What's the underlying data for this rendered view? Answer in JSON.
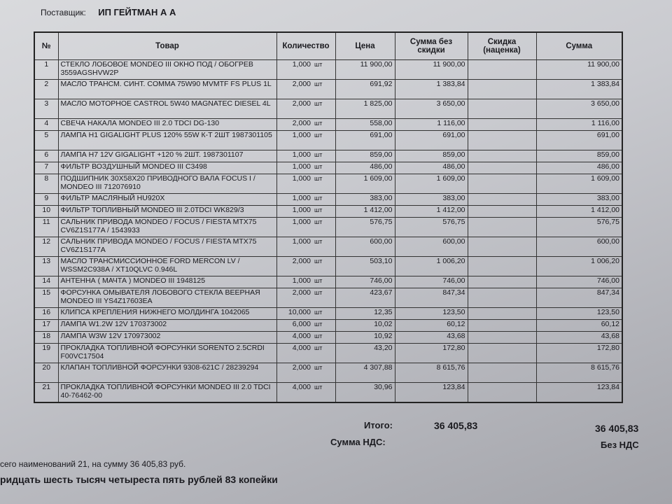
{
  "supplier": {
    "label": "Поставщик:",
    "name": "ИП ГЕЙТМАН А А"
  },
  "headers": {
    "num": "№",
    "item": "Товар",
    "qty": "Количество",
    "price": "Цена",
    "sum_no_disc": "Сумма без скидки",
    "discount": "Скидка (наценка)",
    "sum": "Сумма"
  },
  "rows": [
    {
      "n": "1",
      "item": "СТЕКЛО ЛОБОВОЕ MONDEO III ОКНО ПОД / ОБОГРЕВ 3559AGSHVW2P",
      "qty": "1,000",
      "unit": "шт",
      "price": "11 900,00",
      "sum_nd": "11 900,00",
      "disc": "",
      "sum": "11 900,00",
      "lines": 2
    },
    {
      "n": "2",
      "item": "МАСЛО ТРАНСМ. СИНТ. COMMA 75W90 MVMTF FS PLUS 1L",
      "qty": "2,000",
      "unit": "шт",
      "price": "691,92",
      "sum_nd": "1 383,84",
      "disc": "",
      "sum": "1 383,84",
      "lines": 2
    },
    {
      "n": "3",
      "item": "МАСЛО МОТОРНОЕ CASTROL 5W40 MAGNATEC DIESEL 4L",
      "qty": "2,000",
      "unit": "шт",
      "price": "1 825,00",
      "sum_nd": "3 650,00",
      "disc": "",
      "sum": "3 650,00",
      "lines": 2
    },
    {
      "n": "4",
      "item": "СВЕЧА НАКАЛА MONDEO III 2.0 TDCI DG-130",
      "qty": "2,000",
      "unit": "шт",
      "price": "558,00",
      "sum_nd": "1 116,00",
      "disc": "",
      "sum": "1 116,00",
      "lines": 1
    },
    {
      "n": "5",
      "item": "ЛАМПА H1 GIGALIGHT PLUS 120% 55W К-Т 2ШТ 1987301105",
      "qty": "1,000",
      "unit": "шт",
      "price": "691,00",
      "sum_nd": "691,00",
      "disc": "",
      "sum": "691,00",
      "lines": 2
    },
    {
      "n": "6",
      "item": "ЛАМПА H7 12V GIGALIGHT +120 % 2ШТ. 1987301107",
      "qty": "1,000",
      "unit": "шт",
      "price": "859,00",
      "sum_nd": "859,00",
      "disc": "",
      "sum": "859,00",
      "lines": 1
    },
    {
      "n": "7",
      "item": "ФИЛЬТР ВОЗДУШНЫЙ MONDEO III C3498",
      "qty": "1,000",
      "unit": "шт",
      "price": "486,00",
      "sum_nd": "486,00",
      "disc": "",
      "sum": "486,00",
      "lines": 1
    },
    {
      "n": "8",
      "item": "ПОДШИПНИК 30X58X20 ПРИВОДНОГО ВАЛА FOCUS I / MONDEO III 712076910",
      "qty": "1,000",
      "unit": "шт",
      "price": "1 609,00",
      "sum_nd": "1 609,00",
      "disc": "",
      "sum": "1 609,00",
      "lines": 2
    },
    {
      "n": "9",
      "item": "ФИЛЬТР МАСЛЯНЫЙ HU920X",
      "qty": "1,000",
      "unit": "шт",
      "price": "383,00",
      "sum_nd": "383,00",
      "disc": "",
      "sum": "383,00",
      "lines": 1
    },
    {
      "n": "10",
      "item": "ФИЛЬТР ТОПЛИВНЫЙ MONDEO III 2.0TDCI WK829/3",
      "qty": "1,000",
      "unit": "шт",
      "price": "1 412,00",
      "sum_nd": "1 412,00",
      "disc": "",
      "sum": "1 412,00",
      "lines": 1
    },
    {
      "n": "11",
      "item": "САЛЬНИК ПРИВОДА MONDEO / FOCUS / FIESTA MTX75 CV6Z1S177A / 1543933",
      "qty": "1,000",
      "unit": "шт",
      "price": "576,75",
      "sum_nd": "576,75",
      "disc": "",
      "sum": "576,75",
      "lines": 2
    },
    {
      "n": "12",
      "item": "САЛЬНИК ПРИВОДА MONDEO / FOCUS / FIESTA MTX75 CV6Z1S177A",
      "qty": "1,000",
      "unit": "шт",
      "price": "600,00",
      "sum_nd": "600,00",
      "disc": "",
      "sum": "600,00",
      "lines": 2
    },
    {
      "n": "13",
      "item": "МАСЛО ТРАНСМИССИОННОЕ FORD MERCON LV / WSSM2C938A / XT10QLVC 0.946L",
      "qty": "2,000",
      "unit": "шт",
      "price": "503,10",
      "sum_nd": "1 006,20",
      "disc": "",
      "sum": "1 006,20",
      "lines": 2
    },
    {
      "n": "14",
      "item": "АНТЕННА ( МАЧТА ) MONDEO III 1948125",
      "qty": "1,000",
      "unit": "шт",
      "price": "746,00",
      "sum_nd": "746,00",
      "disc": "",
      "sum": "746,00",
      "lines": 1
    },
    {
      "n": "15",
      "item": "ФОРСУНКА ОМЫВАТЕЛЯ ЛОБОВОГО СТЕКЛА ВЕЕРНАЯ MONDEO III YS4Z17603EA",
      "qty": "2,000",
      "unit": "шт",
      "price": "423,67",
      "sum_nd": "847,34",
      "disc": "",
      "sum": "847,34",
      "lines": 2
    },
    {
      "n": "16",
      "item": "КЛИПСА КРЕПЛЕНИЯ НИЖНЕГО МОЛДИНГА 1042065",
      "qty": "10,000",
      "unit": "шт",
      "price": "12,35",
      "sum_nd": "123,50",
      "disc": "",
      "sum": "123,50",
      "lines": 1
    },
    {
      "n": "17",
      "item": "ЛАМПА W1.2W 12V 170373002",
      "qty": "6,000",
      "unit": "шт",
      "price": "10,02",
      "sum_nd": "60,12",
      "disc": "",
      "sum": "60,12",
      "lines": 1
    },
    {
      "n": "18",
      "item": "ЛАМПА W3W 12V 170973002",
      "qty": "4,000",
      "unit": "шт",
      "price": "10,92",
      "sum_nd": "43,68",
      "disc": "",
      "sum": "43,68",
      "lines": 1
    },
    {
      "n": "19",
      "item": "ПРОКЛАДКА ТОПЛИВНОЙ ФОРСУНКИ SORENTO 2.5CRDI F00VC17504",
      "qty": "4,000",
      "unit": "шт",
      "price": "43,20",
      "sum_nd": "172,80",
      "disc": "",
      "sum": "172,80",
      "lines": 2
    },
    {
      "n": "20",
      "item": "КЛАПАН ТОПЛИВНОЙ ФОРСУНКИ 9308-621C / 28239294",
      "qty": "2,000",
      "unit": "шт",
      "price": "4 307,88",
      "sum_nd": "8 615,76",
      "disc": "",
      "sum": "8 615,76",
      "lines": 2
    },
    {
      "n": "21",
      "item": "ПРОКЛАДКА ТОПЛИВНОЙ ФОРСУНКИ MONDEO III 2.0 TDCI 40-76462-00",
      "qty": "4,000",
      "unit": "шт",
      "price": "30,96",
      "sum_nd": "123,84",
      "disc": "",
      "sum": "123,84",
      "lines": 2
    }
  ],
  "totals": {
    "total_label": "Итого:",
    "total_nd": "36 405,83",
    "total": "36 405,83",
    "vat_label": "Сумма НДС:",
    "vat": "Без НДС"
  },
  "footer": {
    "count_line": "сего наименований 21, на сумму 36 405,83 руб.",
    "words_line": "ридцать шесть тысяч четыреста пять рублей 83 копейки"
  }
}
